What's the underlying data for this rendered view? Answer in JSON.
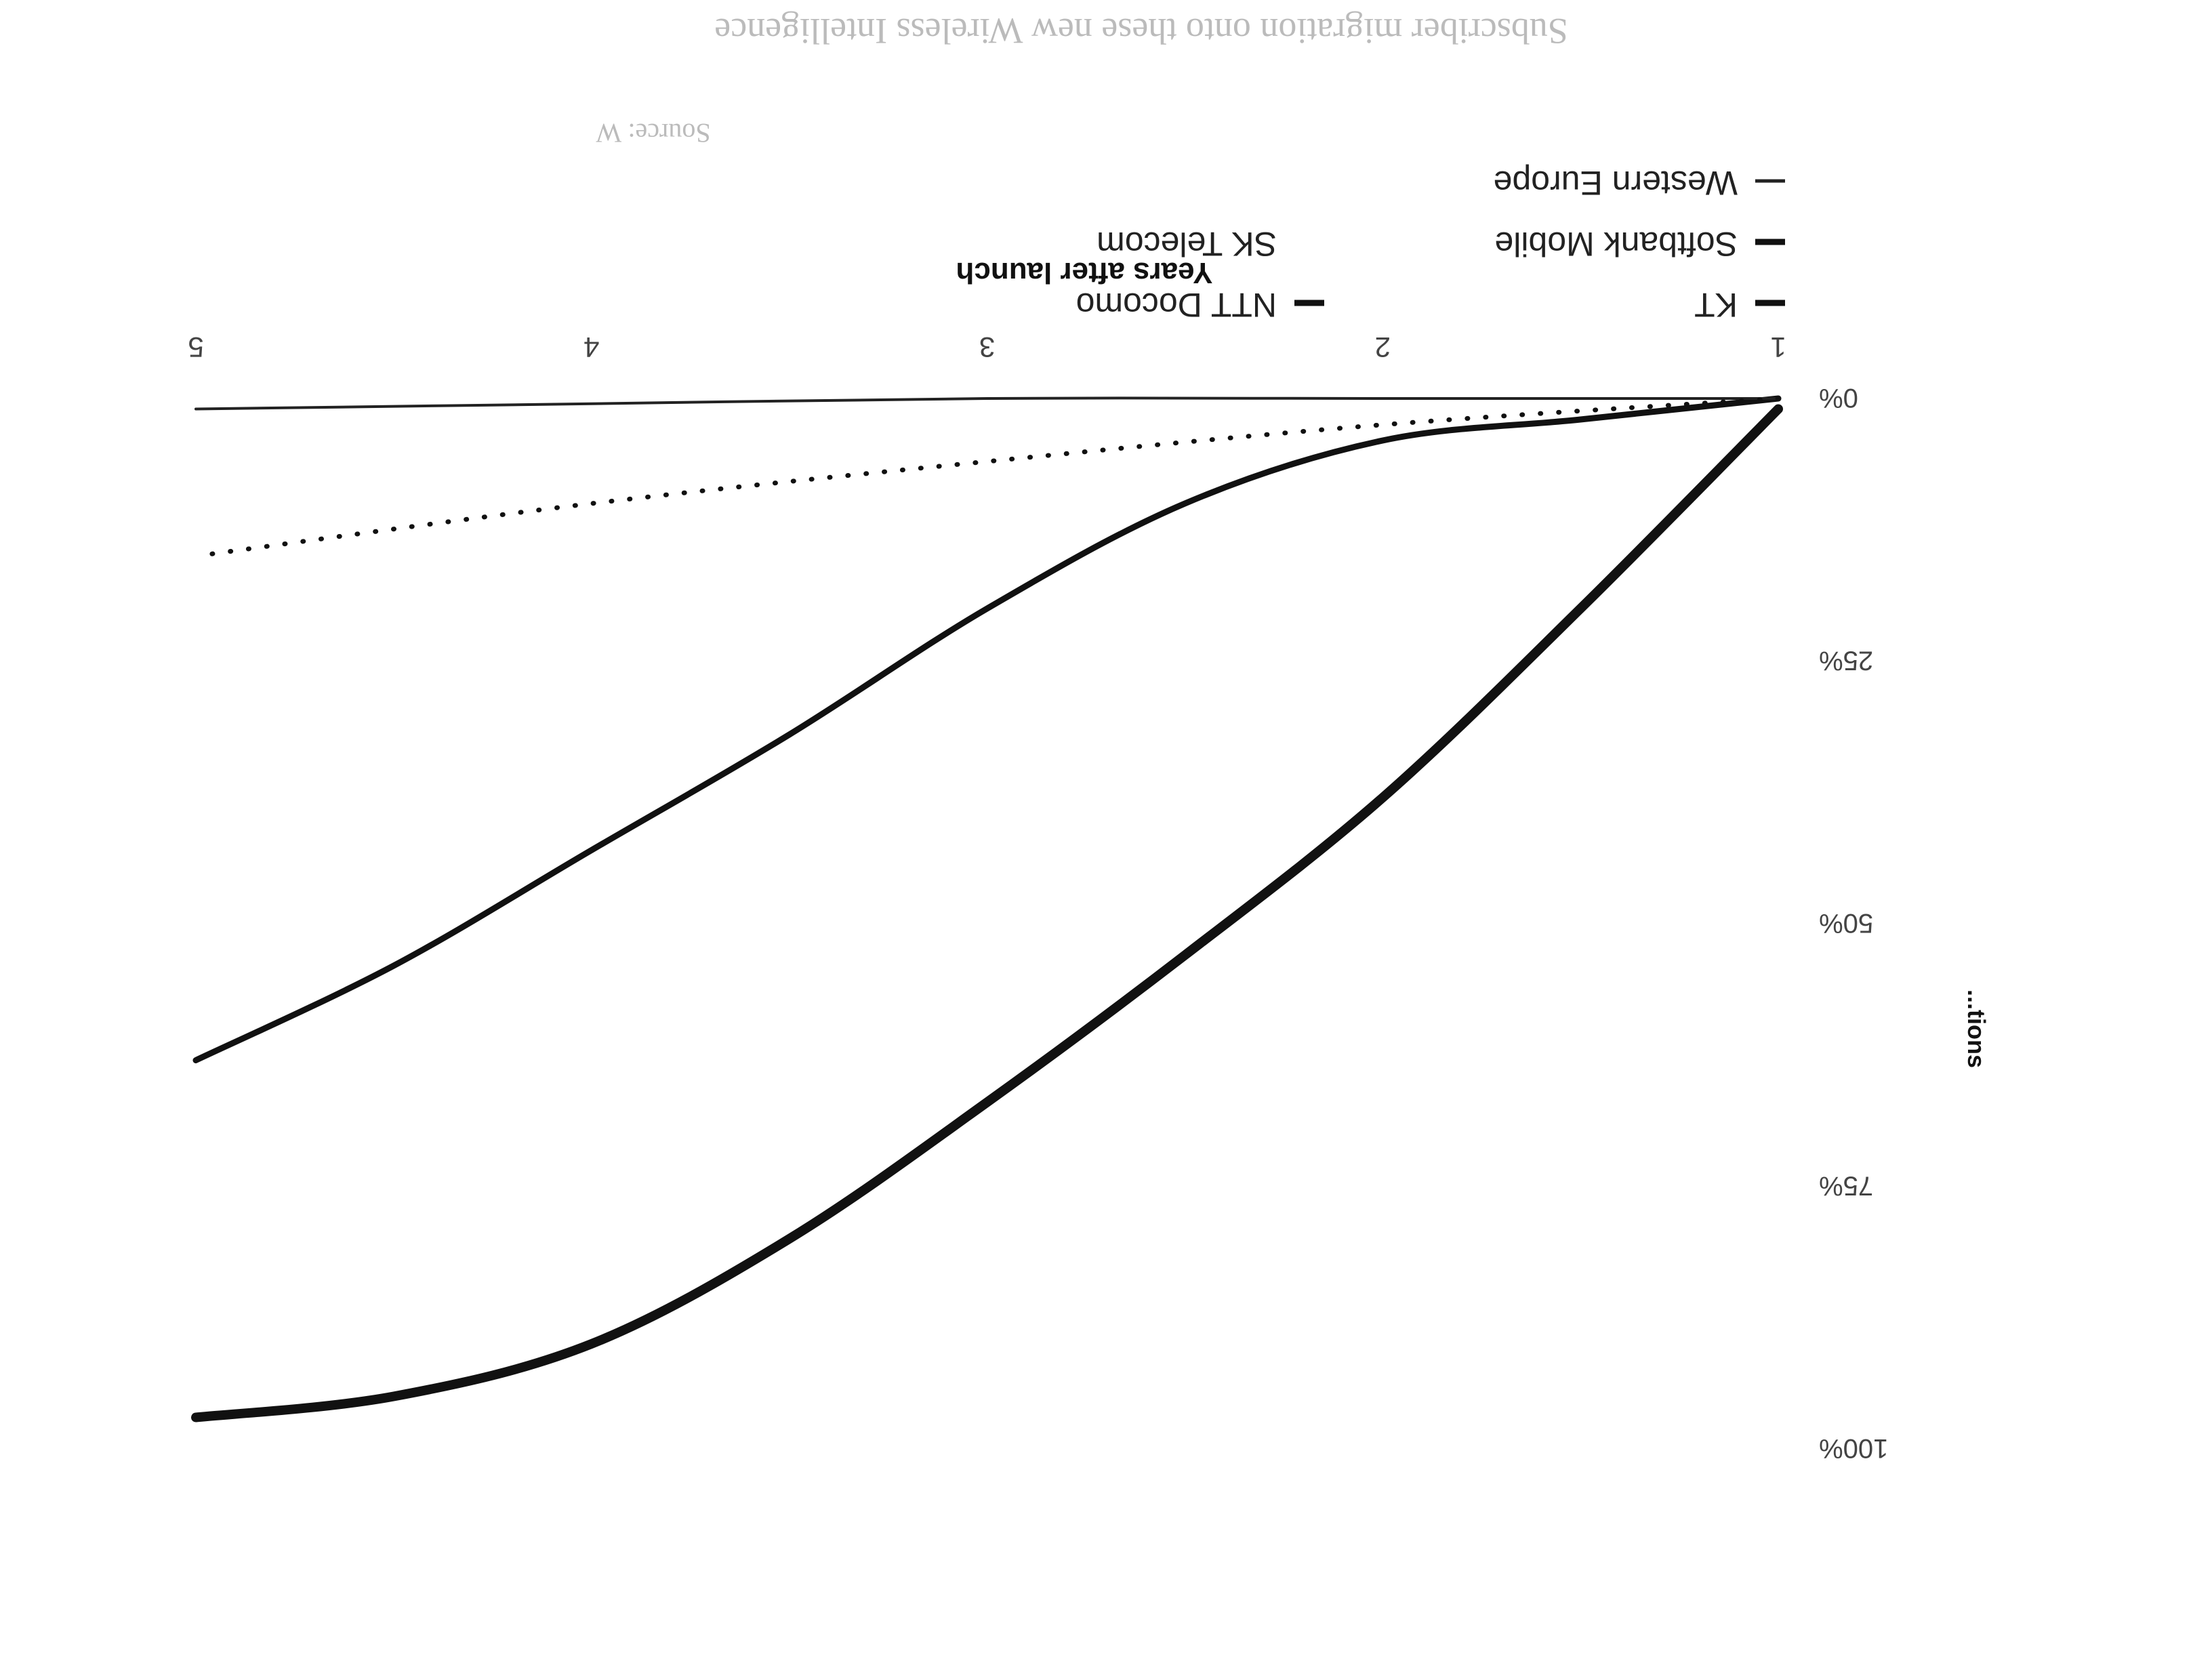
{
  "chart_data": {
    "type": "line",
    "orientation": "image rotated 180 degrees",
    "xlabel": "Years after launch",
    "ylabel": "...tions",
    "x_ticks": [
      "1",
      "2",
      "3",
      "4",
      "5"
    ],
    "y_ticks": [
      "0%",
      "25%",
      "50%",
      "75%",
      "100%"
    ],
    "xlim": [
      1,
      5
    ],
    "ylim": [
      0,
      100
    ],
    "grid": false,
    "legend_placement": "bottom",
    "series": [
      {
        "name": "KT",
        "style": "thick-solid",
        "color": "#111111",
        "x": [
          1,
          1.5,
          2,
          2.5,
          3,
          3.5,
          4,
          4.5,
          5
        ],
        "y": [
          1,
          20,
          38,
          53,
          67,
          80,
          90,
          95,
          97
        ]
      },
      {
        "name": "Softbank Mobile",
        "style": "solid",
        "color": "#111111",
        "x": [
          1,
          1.5,
          2,
          2.5,
          3,
          3.5,
          4,
          4.5,
          5
        ],
        "y": [
          0,
          2,
          4,
          10,
          20,
          32,
          43,
          54,
          63
        ]
      },
      {
        "name": "Western Europe",
        "style": "thin-solid",
        "color": "#222222",
        "x": [
          1,
          2,
          3,
          4,
          5
        ],
        "y": [
          0,
          0,
          0,
          0.5,
          1
        ]
      },
      {
        "name": "NTT Docomo",
        "style": "dotted",
        "color": "#111111",
        "x": [
          1,
          2,
          3,
          4,
          5
        ],
        "y": [
          0,
          2.5,
          6,
          10,
          15
        ]
      },
      {
        "name": "SK Telecom",
        "style": "none",
        "color": "#111111",
        "x": [],
        "y": []
      }
    ]
  },
  "margin_text": {
    "top_line": "Subscriber migration onto these new    Wireless Intelligence",
    "source": "Source: W"
  }
}
